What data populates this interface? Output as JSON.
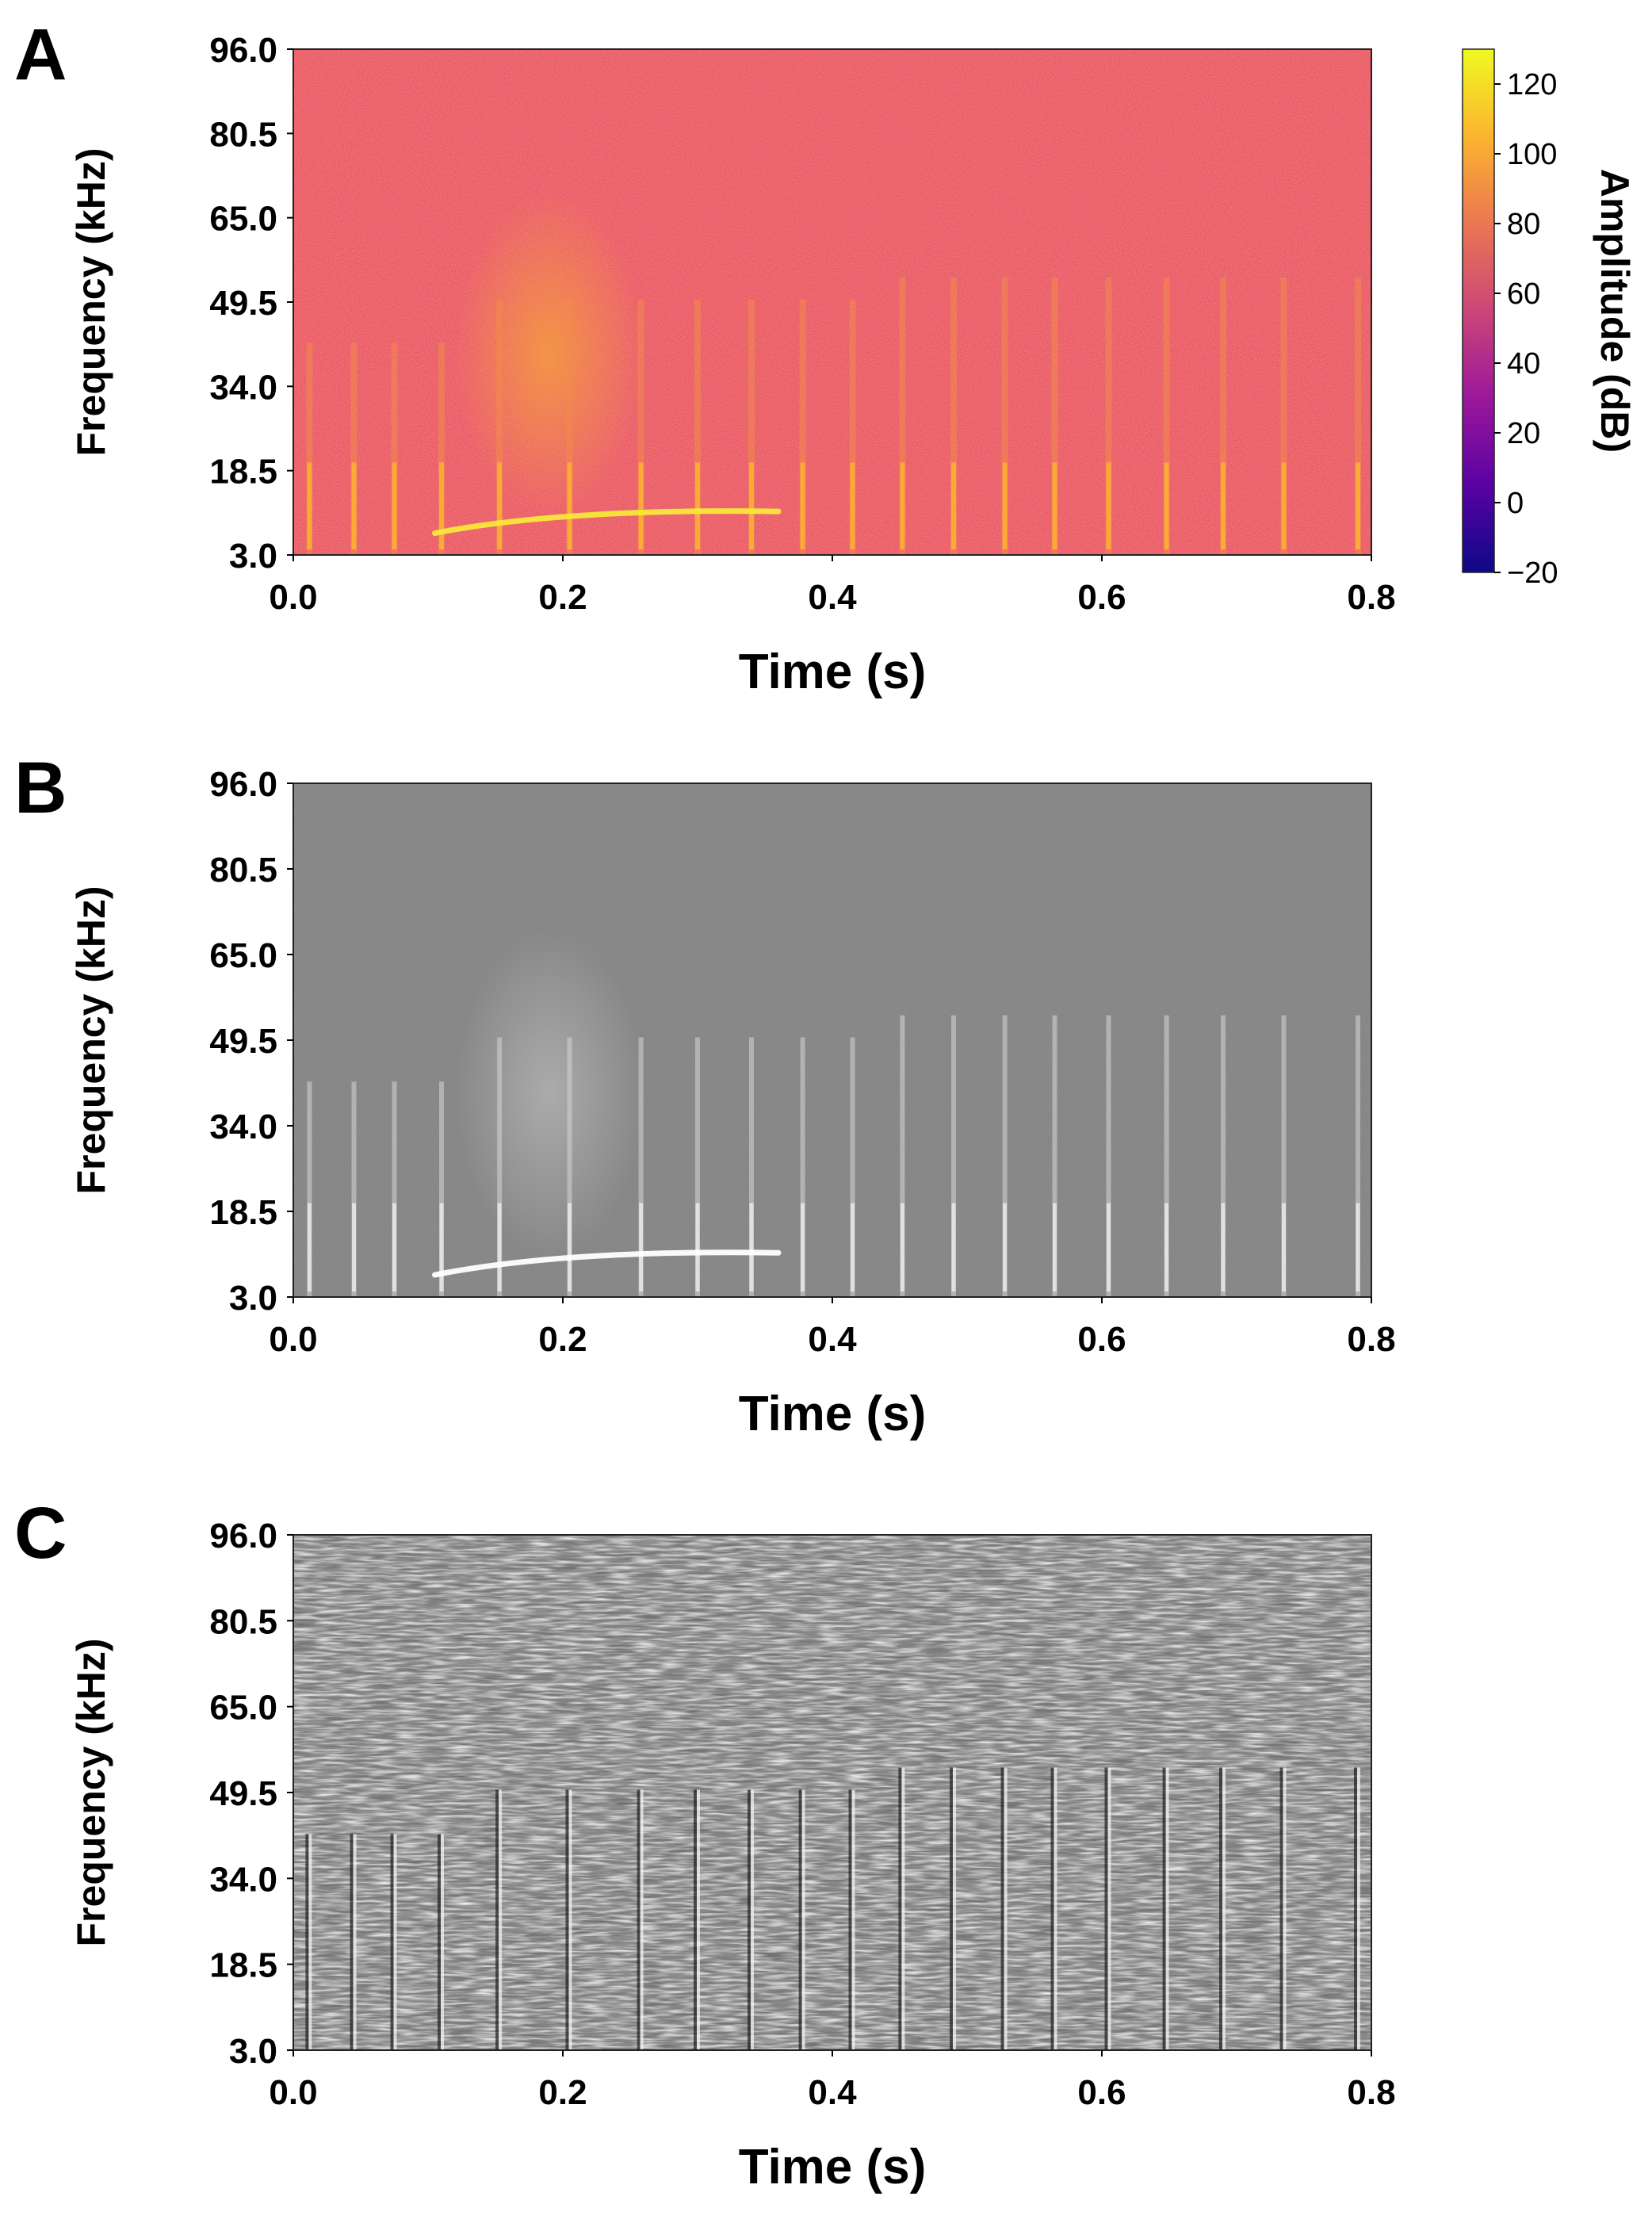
{
  "chart_data": [
    {
      "panel": "A",
      "type": "heatmap",
      "colormap": "plasma",
      "xlabel": "Time (s)",
      "ylabel": "Frequency (kHz)",
      "xlim": [
        0.0,
        0.8
      ],
      "ylim": [
        3.0,
        96.0
      ],
      "xticks": [
        "0.0",
        "0.2",
        "0.4",
        "0.6",
        "0.8"
      ],
      "yticks": [
        "96.0",
        "80.5",
        "65.0",
        "49.5",
        "34.0",
        "18.5",
        "3.0"
      ],
      "colorbar": {
        "label": "Amplitude (dB)",
        "range": [
          -20,
          130
        ],
        "ticks": [
          "120",
          "100",
          "80",
          "60",
          "40",
          "20",
          "0",
          "−20"
        ],
        "colors": [
          "#0d0887",
          "#5b02a3",
          "#9a179b",
          "#cb4678",
          "#eb7852",
          "#fbb32f",
          "#f0f921"
        ]
      },
      "pulse_times": [
        0.012,
        0.045,
        0.075,
        0.11,
        0.153,
        0.205,
        0.258,
        0.3,
        0.34,
        0.378,
        0.415,
        0.452,
        0.49,
        0.528,
        0.565,
        0.605,
        0.648,
        0.69,
        0.735,
        0.79
      ],
      "sweep": {
        "start_time": 0.105,
        "end_time": 0.36,
        "start_freq": 7.0,
        "end_freq": 11.0
      }
    },
    {
      "panel": "B",
      "type": "heatmap",
      "colormap": "grayscale",
      "xlabel": "Time (s)",
      "ylabel": "Frequency (kHz)",
      "xlim": [
        0.0,
        0.8
      ],
      "ylim": [
        3.0,
        96.0
      ],
      "xticks": [
        "0.0",
        "0.2",
        "0.4",
        "0.6",
        "0.8"
      ],
      "yticks": [
        "96.0",
        "80.5",
        "65.0",
        "49.5",
        "34.0",
        "18.5",
        "3.0"
      ]
    },
    {
      "panel": "C",
      "type": "heatmap",
      "colormap": "grayscale-edge",
      "xlabel": "Time (s)",
      "ylabel": "Frequency (kHz)",
      "xlim": [
        0.0,
        0.8
      ],
      "ylim": [
        3.0,
        96.0
      ],
      "xticks": [
        "0.0",
        "0.2",
        "0.4",
        "0.6",
        "0.8"
      ],
      "yticks": [
        "96.0",
        "80.5",
        "65.0",
        "49.5",
        "34.0",
        "18.5",
        "3.0"
      ]
    }
  ]
}
